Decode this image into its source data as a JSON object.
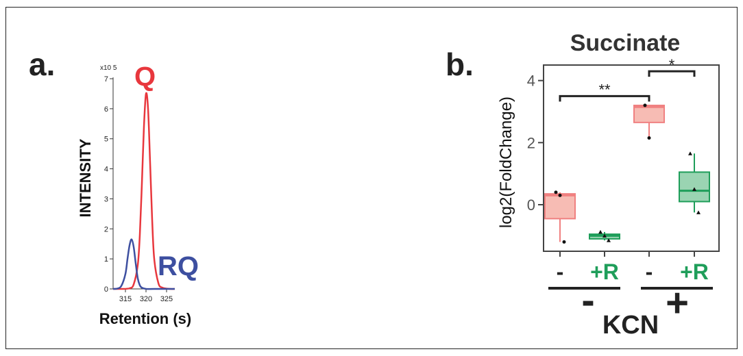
{
  "chart_data": [
    {
      "panel": "a.",
      "type": "line",
      "ylabel": "INTENSITY",
      "xlabel": "Retention (s)",
      "yscale_label": "x10 5",
      "xlim": [
        312,
        327
      ],
      "ylim": [
        0,
        7
      ],
      "xticks": [
        "315",
        "320",
        "325"
      ],
      "yticks": [
        "0",
        "1",
        "2",
        "3",
        "4",
        "5",
        "6",
        "7"
      ],
      "series": [
        {
          "name": "Q",
          "color": "#e8373d",
          "x": [
            312,
            314,
            316,
            317,
            318,
            318.5,
            319,
            319.5,
            320,
            320.5,
            321,
            321.5,
            322,
            323,
            324,
            326,
            327
          ],
          "y": [
            0,
            0,
            0.02,
            0.15,
            0.8,
            1.8,
            3.5,
            5.4,
            6.5,
            6.0,
            4.2,
            2.3,
            1.0,
            0.2,
            0.04,
            0,
            0
          ]
        },
        {
          "name": "RQ",
          "color": "#3d4fa0",
          "x": [
            312,
            313,
            314,
            315,
            315.5,
            316,
            316.5,
            317,
            317.5,
            318,
            318.5,
            319,
            320,
            322,
            327
          ],
          "y": [
            0,
            0.01,
            0.1,
            0.5,
            1.0,
            1.45,
            1.65,
            1.4,
            0.85,
            0.35,
            0.12,
            0.04,
            0,
            0,
            0
          ]
        }
      ]
    },
    {
      "panel": "b.",
      "type": "box",
      "title": "Succinate",
      "ylabel": "log2(FoldChange)",
      "ylim": [
        -1.5,
        4.5
      ],
      "yticks": [
        "0",
        "2",
        "4"
      ],
      "categories": [
        "-",
        "+R",
        "-",
        "+R"
      ],
      "group_label": "KCN",
      "groups": [
        "-",
        "+"
      ],
      "boxes": [
        {
          "category": "-",
          "kcn": "-",
          "color": "#f08080",
          "fill": "#f7bcb4",
          "q1": -0.45,
          "median": 0.3,
          "q3": 0.35,
          "min": -1.2,
          "max": 0.4,
          "points": [
            0.4,
            0.3,
            -1.2
          ],
          "marker": "circle"
        },
        {
          "category": "+R",
          "kcn": "-",
          "color": "#1f9e5a",
          "fill": "#9ad4b2",
          "q1": -1.1,
          "median": -1.0,
          "q3": -0.95,
          "min": -1.15,
          "max": -0.88,
          "points": [
            -0.88,
            -1.0,
            -1.15
          ],
          "marker": "triangle"
        },
        {
          "category": "-",
          "kcn": "+",
          "color": "#f08080",
          "fill": "#f7bcb4",
          "q1": 2.65,
          "median": 3.15,
          "q3": 3.2,
          "min": 2.15,
          "max": 3.2,
          "points": [
            3.2,
            2.15
          ],
          "marker": "circle"
        },
        {
          "category": "+R",
          "kcn": "+",
          "color": "#1f9e5a",
          "fill": "#9ad4b2",
          "q1": 0.1,
          "median": 0.45,
          "q3": 1.05,
          "min": -0.25,
          "max": 1.65,
          "points": [
            1.65,
            0.5,
            -0.25
          ],
          "marker": "triangle"
        }
      ],
      "significance": [
        {
          "label": "**",
          "from": 0,
          "to": 2,
          "y": 3.5
        },
        {
          "label": "*",
          "from": 2,
          "to": 3,
          "y": 4.3
        }
      ]
    }
  ]
}
